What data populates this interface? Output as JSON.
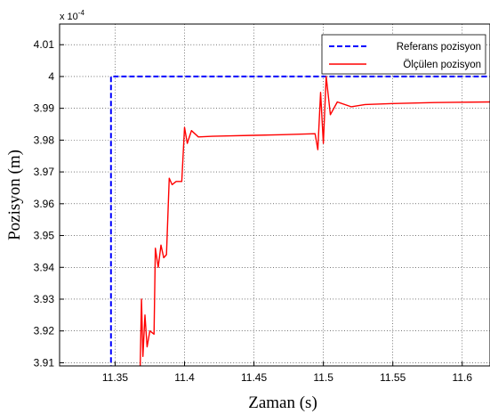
{
  "chart_data": {
    "type": "line",
    "xlabel": "Zaman (s)",
    "ylabel": "Pozisyon (m)",
    "xlim": [
      11.31,
      11.62
    ],
    "ylim": [
      3.909,
      4.0165
    ],
    "x_ticks": [
      11.35,
      11.4,
      11.45,
      11.5,
      11.55,
      11.6
    ],
    "x_tick_labels": [
      "11.35",
      "11.4",
      "11.45",
      "11.5",
      "11.55",
      "11.6"
    ],
    "y_ticks": [
      3.91,
      3.92,
      3.93,
      3.94,
      3.95,
      3.96,
      3.97,
      3.98,
      3.99,
      4.0,
      4.01
    ],
    "y_tick_labels": [
      "3.91",
      "3.92",
      "3.93",
      "3.94",
      "3.95",
      "3.96",
      "3.97",
      "3.98",
      "3.99",
      "4",
      "4.01"
    ],
    "y_multiplier": {
      "base": "x 10",
      "exponent": "-4"
    },
    "grid": true,
    "legend_position": "top-right",
    "series": [
      {
        "name": "Referans pozisyon",
        "color": "#0000ff",
        "style": "dashed",
        "x": [
          11.347,
          11.347,
          11.35,
          11.62
        ],
        "y": [
          3.905,
          4.0,
          4.0,
          4.0
        ]
      },
      {
        "name": "Ölçülen pozisyon",
        "color": "#ff0000",
        "style": "solid",
        "x": [
          11.368,
          11.369,
          11.37,
          11.3715,
          11.373,
          11.375,
          11.378,
          11.379,
          11.381,
          11.383,
          11.385,
          11.387,
          11.389,
          11.391,
          11.394,
          11.398,
          11.4,
          11.402,
          11.405,
          11.41,
          11.42,
          11.43,
          11.45,
          11.47,
          11.494,
          11.496,
          11.498,
          11.5,
          11.502,
          11.505,
          11.51,
          11.52,
          11.53,
          11.55,
          11.58,
          11.62
        ],
        "y": [
          3.908,
          3.93,
          3.912,
          3.925,
          3.915,
          3.92,
          3.919,
          3.946,
          3.94,
          3.947,
          3.943,
          3.944,
          3.968,
          3.966,
          3.967,
          3.967,
          3.984,
          3.979,
          3.983,
          3.981,
          3.9812,
          3.9813,
          3.9815,
          3.9817,
          3.982,
          3.977,
          3.995,
          3.979,
          4.0,
          3.988,
          3.992,
          3.9905,
          3.9912,
          3.9915,
          3.9918,
          3.992
        ]
      }
    ]
  }
}
